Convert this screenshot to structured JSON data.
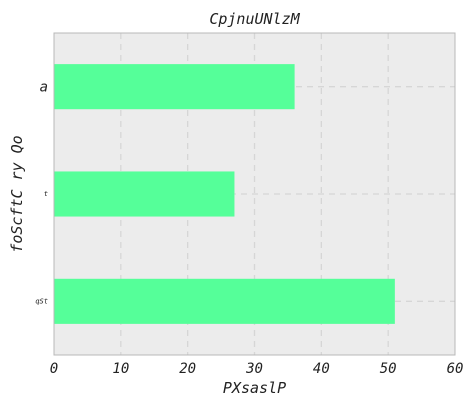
{
  "chart_data": {
    "type": "bar",
    "orientation": "horizontal",
    "title": "CpjnuUNlzM",
    "xlabel": "PXsaslP",
    "ylabel": "foScftC ry Qo",
    "categories": [
      "qSt",
      "t",
      "a"
    ],
    "values": [
      51,
      27,
      36
    ],
    "xlim": [
      0,
      60
    ],
    "xticks": [
      0,
      10,
      20,
      30,
      40,
      50,
      60
    ],
    "grid": true,
    "bar_color": "#55ff99",
    "background_color": "#ececec"
  }
}
